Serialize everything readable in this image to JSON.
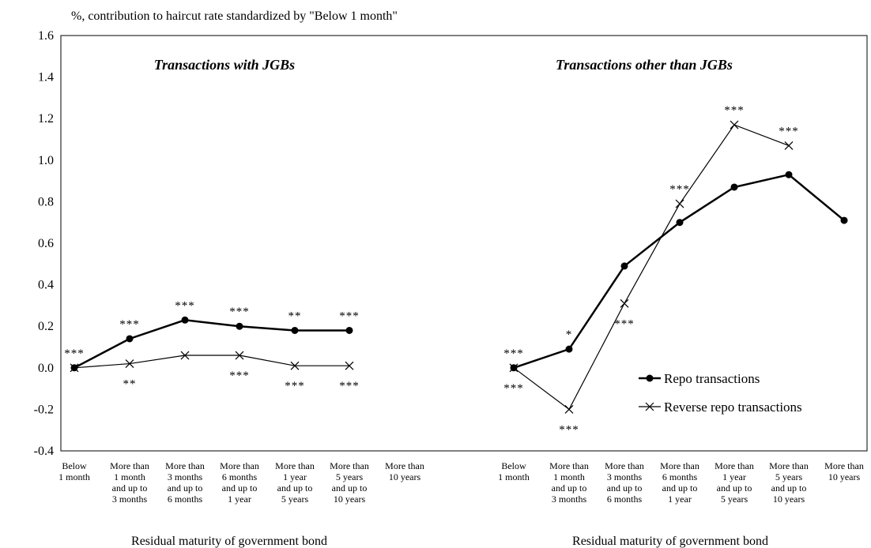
{
  "chart_data": {
    "type": "line",
    "units_label": "%, contribution to haircut rate standardized by \"Below 1 month\"",
    "ylim": [
      -0.4,
      1.6
    ],
    "yticks": [
      "1.6",
      "1.4",
      "1.2",
      "1.0",
      "0.8",
      "0.6",
      "0.4",
      "0.2",
      "0.0",
      "-0.2",
      "-0.4"
    ],
    "categories": [
      [
        "Below",
        "1 month"
      ],
      [
        "More than",
        "1 month",
        "and up to",
        "3 months"
      ],
      [
        "More than",
        "3 months",
        "and up to",
        "6 months"
      ],
      [
        "More than",
        "6 months",
        "and up to",
        "1 year"
      ],
      [
        "More than",
        "1 year",
        "and up to",
        "5 years"
      ],
      [
        "More than",
        "5 years",
        "and up to",
        "10 years"
      ],
      [
        "More than",
        "10 years"
      ]
    ],
    "xlabel": "Residual maturity of government bond",
    "legend": {
      "placement": "right-middle",
      "entries": [
        "Repo transactions",
        "Reverse repo transactions"
      ]
    },
    "panels": [
      {
        "title": "Transactions with JGBs",
        "series": [
          {
            "name": "Repo transactions",
            "marker": "dot",
            "values": [
              0.0,
              0.14,
              0.23,
              0.2,
              0.18,
              0.18,
              null
            ],
            "significance": [
              "***",
              "***",
              "***",
              "***",
              "**",
              "***",
              ""
            ]
          },
          {
            "name": "Reverse repo transactions",
            "marker": "x",
            "values": [
              0.0,
              0.02,
              0.06,
              0.06,
              0.01,
              0.01,
              null
            ],
            "significance": [
              "",
              "**",
              "",
              "***",
              "***",
              "***",
              ""
            ]
          }
        ]
      },
      {
        "title": "Transactions other than JGBs",
        "series": [
          {
            "name": "Repo transactions",
            "marker": "dot",
            "values": [
              0.0,
              0.09,
              0.49,
              0.7,
              0.87,
              0.93,
              0.71
            ],
            "significance": [
              "***",
              "*",
              "",
              "",
              "",
              "",
              ""
            ]
          },
          {
            "name": "Reverse repo transactions",
            "marker": "x",
            "values": [
              0.0,
              -0.2,
              0.31,
              0.79,
              1.17,
              1.07,
              null
            ],
            "significance": [
              "***",
              "***",
              "***",
              "***",
              "***",
              "***",
              ""
            ]
          }
        ]
      }
    ]
  }
}
